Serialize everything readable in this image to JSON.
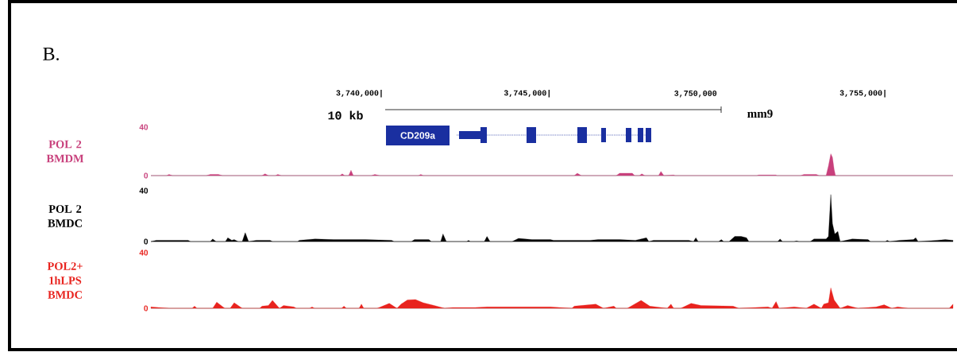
{
  "chart_data": [
    {
      "type": "area",
      "title": "B.",
      "annotations": [
        "CD209a",
        "10 kb",
        "mm9"
      ],
      "xlim": [
        3733780,
        3757670
      ],
      "xticks": [
        {
          "value": 3740000,
          "label": "3,740,000|"
        },
        {
          "value": 3745000,
          "label": "3,745,000|"
        },
        {
          "value": 3750000,
          "label": "3,750,000"
        },
        {
          "value": 3755000,
          "label": "3,755,000|"
        }
      ],
      "ylim": [
        0,
        40
      ],
      "yticks": [
        0,
        40
      ],
      "series": [
        {
          "name": "POL 2 BMDM",
          "color": "#c8407c",
          "x": [
            3733780,
            3734250,
            3734320,
            3734420,
            3735430,
            3735550,
            3735790,
            3735910,
            3737090,
            3737180,
            3737280,
            3737490,
            3737560,
            3737660,
            3739410,
            3739480,
            3739550,
            3739670,
            3739740,
            3739810,
            3740350,
            3740450,
            3740590,
            3741750,
            3741820,
            3741890,
            3746390,
            3746480,
            3746600,
            3747640,
            3747740,
            3748120,
            3748190,
            3748330,
            3748400,
            3748490,
            3748900,
            3748970,
            3749060,
            3749350,
            3749390,
            3751830,
            3751880,
            3752400,
            3752420,
            3753130,
            3753230,
            3753600,
            3753680,
            3753890,
            3753960,
            3754030,
            3754080,
            3754130,
            3754170,
            3757670
          ],
          "values": [
            0,
            0,
            1,
            0,
            0,
            1,
            1,
            0,
            0,
            1.5,
            0,
            0,
            1,
            0,
            0,
            1.5,
            0,
            0,
            4.5,
            0,
            0,
            1,
            0,
            0,
            1,
            0,
            0,
            2,
            0,
            0,
            2,
            2,
            0,
            0,
            1.5,
            0,
            0,
            3.5,
            0,
            0.5,
            0,
            0,
            0.5,
            0.5,
            0,
            0,
            1,
            1,
            0,
            0,
            8,
            18,
            15,
            5,
            0,
            0
          ]
        }
      ]
    },
    {
      "type": "area",
      "tick_labels": "y",
      "xlim": [
        3733780,
        3757670
      ],
      "ylim": [
        0,
        40
      ],
      "yticks": [
        0,
        40
      ],
      "series": [
        {
          "name": "POL 2 BMDC",
          "color": "#000000",
          "x": [
            3733780,
            3733940,
            3734890,
            3734960,
            3735550,
            3735620,
            3735720,
            3736000,
            3736070,
            3736190,
            3736260,
            3736380,
            3736500,
            3736590,
            3736690,
            3736920,
            3737330,
            3737400,
            3738150,
            3738200,
            3738670,
            3739220,
            3740170,
            3740950,
            3741020,
            3741540,
            3741630,
            3742060,
            3742130,
            3742410,
            3742480,
            3742580,
            3743190,
            3743240,
            3743290,
            3743710,
            3743790,
            3743880,
            3744540,
            3744730,
            3745130,
            3745680,
            3745770,
            3746080,
            3746860,
            3747100,
            3747740,
            3748210,
            3748540,
            3748610,
            3748750,
            3749800,
            3749940,
            3750010,
            3750080,
            3750690,
            3750770,
            3750840,
            3751000,
            3751170,
            3751360,
            3751520,
            3751590,
            3752450,
            3752520,
            3752590,
            3752940,
            3753010,
            3753080,
            3753420,
            3753530,
            3753890,
            3753960,
            3754030,
            3754080,
            3754150,
            3754240,
            3754310,
            3754670,
            3755140,
            3755210,
            3755660,
            3755710,
            3755780,
            3756090,
            3756490,
            3756560,
            3756630,
            3757200,
            3757440,
            3757670
          ],
          "values": [
            0,
            1,
            1,
            0,
            0,
            2,
            0,
            0,
            3,
            1,
            1.5,
            0,
            0,
            7,
            0,
            1,
            1,
            0,
            0,
            1,
            2,
            1.5,
            1.5,
            1,
            0,
            0,
            1.5,
            1.5,
            0,
            0,
            6,
            0,
            0,
            1,
            0,
            0,
            4,
            0,
            0,
            2.5,
            1.5,
            1.5,
            1,
            1,
            1,
            1.5,
            1.5,
            1,
            3,
            0,
            1,
            1,
            0,
            3,
            0,
            0,
            1.5,
            0,
            0,
            4,
            4,
            3,
            0,
            0,
            2,
            0,
            0,
            0.5,
            0,
            0,
            2,
            2,
            4,
            37,
            14,
            6,
            8,
            0,
            2,
            1.5,
            0,
            0,
            1,
            0,
            1,
            1.5,
            3,
            0,
            1,
            1.5,
            1
          ]
        }
      ]
    },
    {
      "type": "area",
      "tick_labels": "y",
      "xlim": [
        3733780,
        3757670
      ],
      "ylim": [
        0,
        40
      ],
      "yticks": [
        0,
        40
      ],
      "series": [
        {
          "name": "POL2+ 1hLPS BMDC",
          "color": "#e8231e",
          "x": [
            3733780,
            3734320,
            3735010,
            3735080,
            3735150,
            3735620,
            3735740,
            3735980,
            3736140,
            3736260,
            3736500,
            3737020,
            3737090,
            3737280,
            3737400,
            3737610,
            3737730,
            3738040,
            3738110,
            3738510,
            3738580,
            3738650,
            3739460,
            3739530,
            3739600,
            3739980,
            3740050,
            3740120,
            3740520,
            3740880,
            3741110,
            3741230,
            3741420,
            3741660,
            3741890,
            3742220,
            3742530,
            3742770,
            3743430,
            3743790,
            3745680,
            3746320,
            3746390,
            3747030,
            3747260,
            3747570,
            3747640,
            3747970,
            3748380,
            3748640,
            3749160,
            3749270,
            3749350,
            3749560,
            3749870,
            3750170,
            3751120,
            3751290,
            3752160,
            3752280,
            3752400,
            3752490,
            3752940,
            3753300,
            3753530,
            3753750,
            3753820,
            3753960,
            3754030,
            3754130,
            3754310,
            3754530,
            3754840,
            3755380,
            3755620,
            3755850,
            3756020,
            3756330,
            3757560,
            3757670
          ],
          "values": [
            1,
            0,
            0,
            1.5,
            0,
            0,
            4.4,
            0,
            0,
            4,
            0,
            0,
            1.5,
            2,
            5.7,
            0,
            2,
            1,
            0,
            0,
            1,
            0,
            0,
            1.5,
            0,
            0,
            3,
            0,
            0,
            3.5,
            0,
            3,
            6,
            6.3,
            4,
            2,
            0,
            0.5,
            0.5,
            1,
            1,
            0,
            1.5,
            3,
            0,
            1.5,
            0,
            0,
            5.7,
            1.5,
            0,
            3,
            0,
            0,
            3.5,
            2,
            1.5,
            0,
            1,
            0,
            4.8,
            0,
            1,
            0,
            3,
            0,
            3,
            4,
            14.7,
            6,
            0,
            2,
            0,
            1,
            2.5,
            0,
            1,
            0,
            0,
            3
          ]
        }
      ]
    }
  ]
}
